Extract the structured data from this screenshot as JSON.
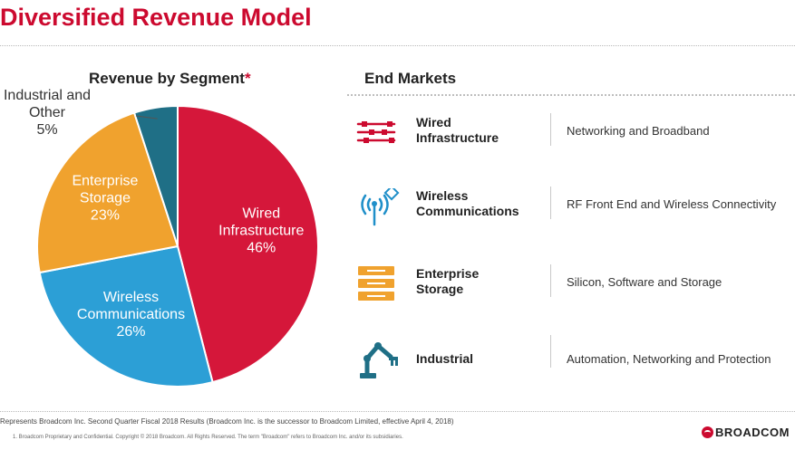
{
  "title": "Diversified Revenue Model",
  "chart_data": {
    "type": "pie",
    "title": "Revenue by Segment",
    "title_marker": "*",
    "slices": [
      {
        "label_lines": [
          "Wired",
          "Infrastructure"
        ],
        "value": 46,
        "value_label": "46%",
        "color": "#d5173a"
      },
      {
        "label_lines": [
          "Wireless",
          "Communications"
        ],
        "value": 26,
        "value_label": "26%",
        "color": "#2c9fd6"
      },
      {
        "label_lines": [
          "Enterprise",
          "Storage"
        ],
        "value": 23,
        "value_label": "23%",
        "color": "#f0a22e"
      },
      {
        "label_lines": [
          "Industrial and",
          "Other"
        ],
        "value": 5,
        "value_label": "5%",
        "color": "#1f6f86"
      }
    ]
  },
  "end_markets": {
    "title": "End Markets",
    "items": [
      {
        "name": "Wired Infrastructure",
        "name_lines": [
          "Wired",
          "Infrastructure"
        ],
        "description": "Networking and Broadband",
        "icon": "cable-icon",
        "icon_color": "#cc0a2f"
      },
      {
        "name": "Wireless Communications",
        "name_lines": [
          "Wireless",
          "Communications"
        ],
        "description": "RF Front End and Wireless Connectivity",
        "icon": "antenna-icon",
        "icon_color": "#1f8fc9"
      },
      {
        "name": "Enterprise Storage",
        "name_lines": [
          "Enterprise",
          "Storage"
        ],
        "description": "Silicon, Software and Storage",
        "icon": "storage-icon",
        "icon_color": "#f0a22e"
      },
      {
        "name": "Industrial",
        "name_lines": [
          "Industrial"
        ],
        "description": "Automation, Networking and Protection",
        "icon": "robot-arm-icon",
        "icon_color": "#1f6f86"
      }
    ]
  },
  "footnote": "Represents Broadcom Inc. Second Quarter Fiscal 2018 Results (Broadcom Inc. is the successor to Broadcom Limited, effective April 4, 2018)",
  "copyright": "1.   Broadcom Proprietary and Confidential.  Copyright © 2018 Broadcom.  All Rights Reserved.  The term \"Broadcom\" refers to Broadcom Inc. and/or its subsidiaries.",
  "logo_text": "BROADCOM"
}
